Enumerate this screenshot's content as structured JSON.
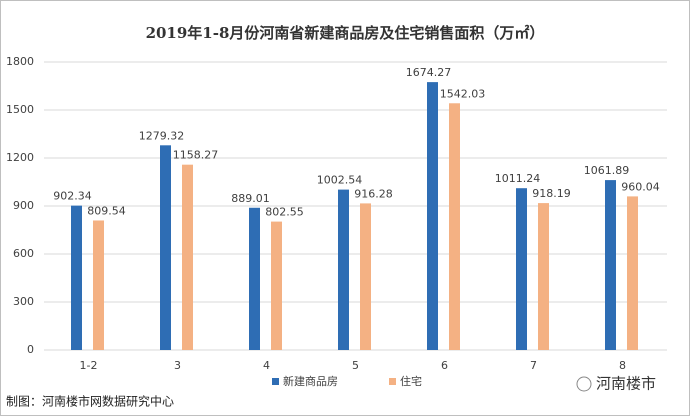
{
  "chart_data": {
    "type": "bar",
    "title": "2019年1-8月份河南省新建商品房及住宅销售面积（万㎡）",
    "categories": [
      "1-2",
      "3",
      "4",
      "5",
      "6",
      "7",
      "8"
    ],
    "series": [
      {
        "name": "新建商品房",
        "color": "#2e6db4",
        "values": [
          902.34,
          1279.32,
          889.01,
          1002.54,
          1674.27,
          1011.24,
          1061.89
        ]
      },
      {
        "name": "住宅",
        "color": "#f4b183",
        "values": [
          809.54,
          1158.27,
          802.55,
          916.28,
          1542.03,
          918.19,
          960.04
        ]
      }
    ],
    "ylim": [
      0,
      1800
    ],
    "yticks": [
      0,
      300,
      600,
      900,
      1200,
      1500,
      1800
    ],
    "grid": true,
    "source": "制图：河南楼市网数据研究中心",
    "brand": "河南楼市"
  }
}
